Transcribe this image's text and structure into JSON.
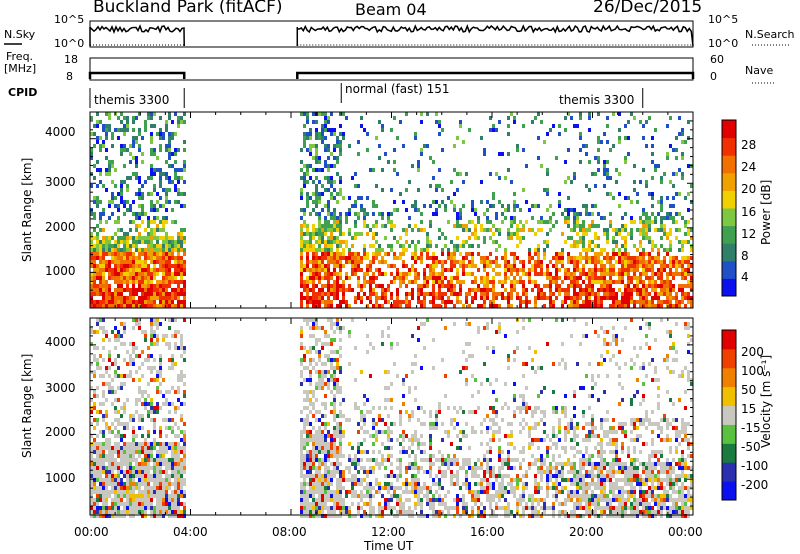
{
  "header": {
    "title": "Buckland Park (fitACF)",
    "beam": "Beam 04",
    "date": "26/Dec/2015"
  },
  "status_panels": {
    "nsky_label": "N.Sky",
    "nsearch_label": "N.Search",
    "noise_ticks": [
      "10^5",
      "10^0"
    ],
    "freq_label_1": "Freq.",
    "freq_label_2": "[MHz]",
    "freq_ticks": [
      "18",
      "8"
    ],
    "nave_label": "Nave",
    "nave_ticks": [
      "60",
      "0"
    ],
    "cpid_label": "CPID",
    "cpid_segments": [
      "themis 3300",
      "normal (fast) 151",
      "themis 3300"
    ]
  },
  "colors": {
    "power_scale": [
      "#0a10ee",
      "#2050c8",
      "#2f7f6a",
      "#3fa050",
      "#7dc840",
      "#f0d000",
      "#f0a000",
      "#f07000",
      "#f03000",
      "#e00000"
    ],
    "velocity_scale": [
      "#0a10ee",
      "#2a30b0",
      "#1a7a40",
      "#5ac040",
      "#c8c8c0",
      "#f0c000",
      "#f08000",
      "#f04000",
      "#e00000"
    ],
    "frame": "#000000"
  },
  "chart_data": [
    {
      "type": "heatmap",
      "name": "power",
      "ylabel": "Slant Range [km]",
      "yticks": [
        "4000",
        "3000",
        "2000",
        "1000"
      ],
      "ylim": [
        200,
        4600
      ],
      "colorbar_label": "Power [dB]",
      "colorbar_ticks": [
        "28",
        "24",
        "20",
        "16",
        "12",
        "8",
        "4"
      ],
      "vlim": [
        0,
        32
      ],
      "data_intervals_ut": [
        [
          "00:00",
          "03:45"
        ],
        [
          "08:15",
          "24:00"
        ]
      ]
    },
    {
      "type": "heatmap",
      "name": "velocity",
      "ylabel": "Slant Range [km]",
      "yticks": [
        "4000",
        "3000",
        "2000",
        "1000"
      ],
      "ylim": [
        200,
        4600
      ],
      "colorbar_label": "Velocity [m s⁻¹]",
      "colorbar_ticks": [
        "200",
        "100",
        "50",
        "15",
        "-15",
        "-50",
        "-100",
        "-200"
      ],
      "vlim": [
        -250,
        250
      ],
      "data_intervals_ut": [
        [
          "00:00",
          "03:45"
        ],
        [
          "08:15",
          "24:00"
        ]
      ]
    }
  ],
  "x_axis": {
    "xlabel": "Time UT",
    "ticks": [
      "00:00",
      "04:00",
      "08:00",
      "12:00",
      "16:00",
      "20:00",
      "00:00"
    ]
  }
}
